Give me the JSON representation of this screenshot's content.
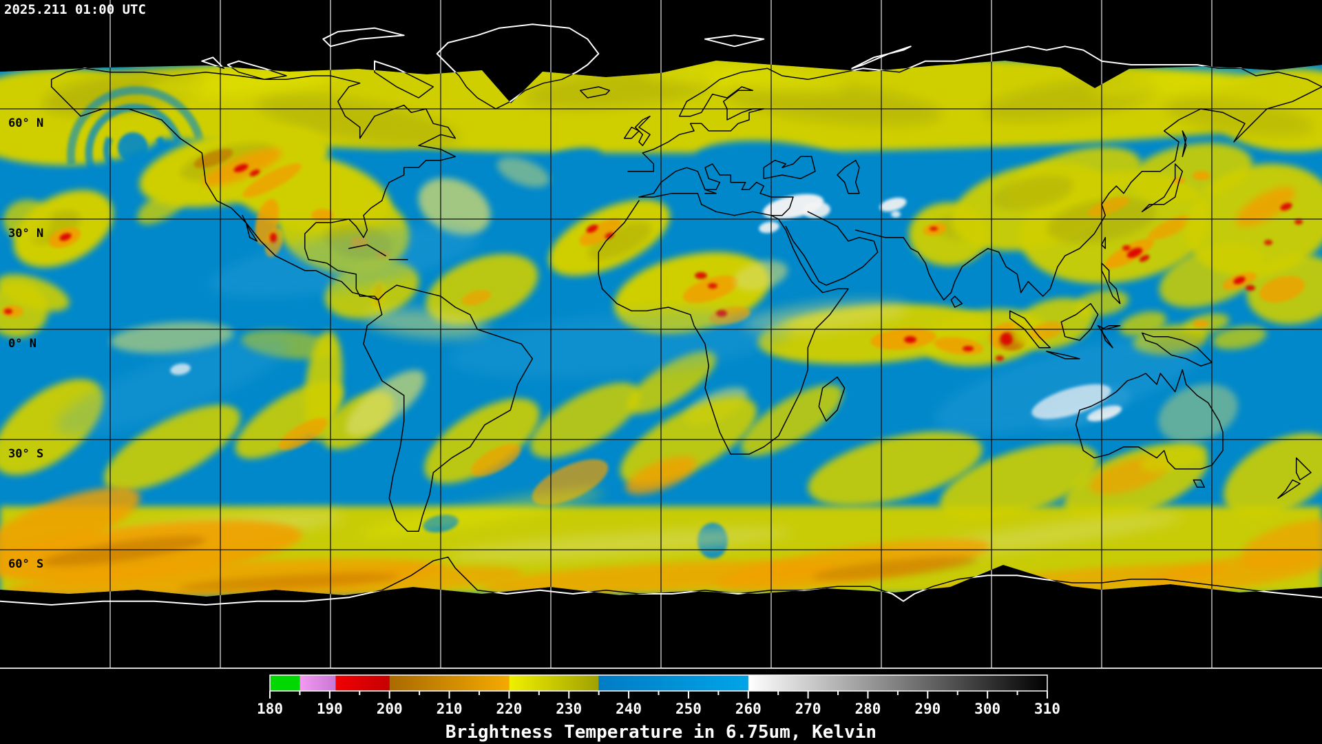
{
  "timestamp": "2025.211 01:00 UTC",
  "map": {
    "projection": "equirectangular",
    "grid_spacing_deg": 30,
    "lat_labels": [
      {
        "text": "60° N",
        "lat": 60
      },
      {
        "text": "30° N",
        "lat": 30
      },
      {
        "text": "0° N",
        "lat": 0
      },
      {
        "text": "30° S",
        "lat": -30
      },
      {
        "text": "60° S",
        "lat": -60
      }
    ],
    "lat_lines": [
      60,
      30,
      0,
      -30,
      -60
    ],
    "colors": {
      "background": "#000000",
      "ocean_dry_blue": "#0088ca",
      "moist_yellow": "#cfcf04",
      "olive": "#a8a808",
      "bright_yellow": "#e8e800",
      "pale_yellow": "#d8dc6a",
      "cold_orange": "#f0a000",
      "dark_orange": "#c07400",
      "very_cold_red": "#dd0000",
      "warm_white": "#f4f4f4",
      "grid_over_data": "#101010",
      "grid_over_background": "#d8d8d8",
      "coast_over_data": "#000000",
      "coast_over_background": "#ffffff"
    }
  },
  "colorbar": {
    "caption": "Brightness Temperature in 6.75um, Kelvin",
    "min": 180,
    "max": 310,
    "major_tick_step": 10,
    "minor_tick_step": 5,
    "tick_labels": [
      "180",
      "190",
      "200",
      "210",
      "220",
      "230",
      "240",
      "250",
      "260",
      "270",
      "280",
      "290",
      "300",
      "310"
    ],
    "segments": [
      {
        "from": 180,
        "to": 185,
        "color_start": "#00d800",
        "color_end": "#00d800"
      },
      {
        "from": 185,
        "to": 191,
        "color_start": "#f49af2",
        "color_end": "#c877d4"
      },
      {
        "from": 191,
        "to": 200,
        "color_start": "#f00000",
        "color_end": "#c60000"
      },
      {
        "from": 200,
        "to": 220,
        "color_start": "#a96a00",
        "color_end": "#f4aa00"
      },
      {
        "from": 220,
        "to": 235,
        "color_start": "#f0f000",
        "color_end": "#a0a000"
      },
      {
        "from": 235,
        "to": 260,
        "color_start": "#007cc4",
        "color_end": "#00a4e8"
      },
      {
        "from": 260,
        "to": 310,
        "color_start": "#ffffff",
        "color_end": "#000000"
      }
    ],
    "border_color": "#ffffff",
    "tick_color": "#ffffff"
  }
}
